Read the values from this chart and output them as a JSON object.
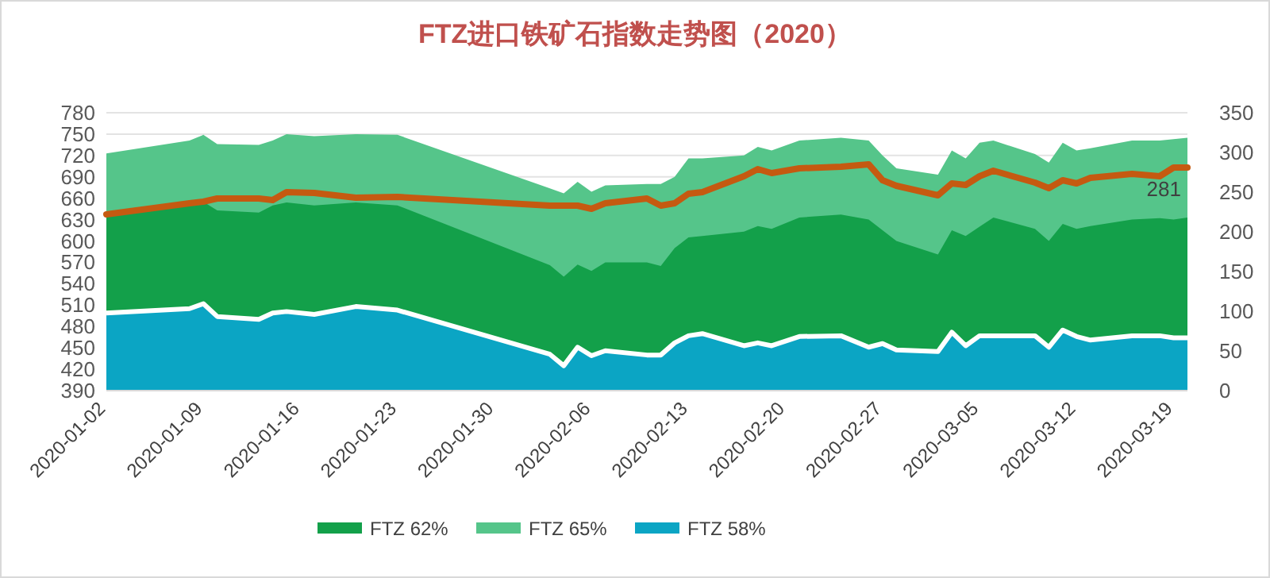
{
  "chart_data": {
    "type": "area",
    "title": "FTZ进口铁矿石指数走势图（2020）",
    "x": [
      "2020-01-02",
      "2020-01-08",
      "2020-01-09",
      "2020-01-10",
      "2020-01-13",
      "2020-01-14",
      "2020-01-15",
      "2020-01-17",
      "2020-01-20",
      "2020-01-23",
      "2020-02-03",
      "2020-02-04",
      "2020-02-05",
      "2020-02-06",
      "2020-02-07",
      "2020-02-10",
      "2020-02-11",
      "2020-02-12",
      "2020-02-13",
      "2020-02-14",
      "2020-02-17",
      "2020-02-18",
      "2020-02-19",
      "2020-02-21",
      "2020-02-24",
      "2020-02-26",
      "2020-02-27",
      "2020-02-28",
      "2020-03-02",
      "2020-03-03",
      "2020-03-04",
      "2020-03-05",
      "2020-03-06",
      "2020-03-09",
      "2020-03-10",
      "2020-03-11",
      "2020-03-12",
      "2020-03-13",
      "2020-03-16",
      "2020-03-18",
      "2020-03-19",
      "2020-03-20"
    ],
    "series": [
      {
        "name": "FTZ 62%",
        "color": "#13a04a",
        "values": [
          637,
          653,
          655,
          643,
          640,
          650,
          654,
          650,
          654,
          650,
          566,
          550,
          567,
          558,
          570,
          570,
          565,
          590,
          605,
          607,
          613,
          621,
          617,
          633,
          637,
          630,
          615,
          600,
          581,
          615,
          607,
          620,
          633,
          617,
          600,
          624,
          617,
          621,
          630,
          632,
          630,
          633
        ]
      },
      {
        "name": "FTZ 65%",
        "color": "#55c58a",
        "values": [
          723,
          741,
          749,
          736,
          735,
          741,
          750,
          747,
          750,
          749,
          674,
          667,
          683,
          669,
          678,
          680,
          680,
          690,
          716,
          716,
          720,
          732,
          727,
          741,
          745,
          741,
          720,
          702,
          693,
          727,
          716,
          738,
          741,
          722,
          710,
          738,
          727,
          730,
          741,
          741,
          743,
          745
        ]
      },
      {
        "name": "FTZ 58%",
        "color": "#0ba5c4",
        "values": [
          499,
          505,
          512,
          494,
          490,
          499,
          501,
          497,
          508,
          503,
          441,
          425,
          451,
          439,
          446,
          440,
          440,
          457,
          467,
          470,
          453,
          457,
          453,
          466,
          467,
          451,
          456,
          447,
          445,
          472,
          453,
          467,
          467,
          467,
          451,
          475,
          466,
          461,
          467,
          467,
          464,
          464
        ]
      },
      {
        "type": "line",
        "axis": "y2",
        "color": "#c55a11",
        "values": [
          222,
          236,
          238,
          242,
          242,
          240,
          250,
          249,
          243,
          244,
          233,
          233,
          233,
          229,
          236,
          242,
          233,
          236,
          248,
          250,
          270,
          279,
          274,
          280,
          282,
          285,
          265,
          258,
          246,
          261,
          259,
          270,
          277,
          262,
          255,
          265,
          261,
          268,
          273,
          270,
          281,
          281
        ],
        "value_labels": [
          null,
          null,
          null,
          null,
          null,
          null,
          null,
          null,
          null,
          null,
          null,
          null,
          null,
          null,
          null,
          null,
          null,
          null,
          null,
          null,
          null,
          null,
          null,
          null,
          null,
          null,
          null,
          null,
          null,
          null,
          null,
          null,
          null,
          null,
          null,
          null,
          null,
          null,
          null,
          null,
          null,
          "281"
        ]
      }
    ],
    "xlim": [
      "2020-01-02",
      "2020-03-20"
    ],
    "xticks": [
      "2020-01-02",
      "2020-01-09",
      "2020-01-16",
      "2020-01-23",
      "2020-01-30",
      "2020-02-06",
      "2020-02-13",
      "2020-02-20",
      "2020-02-27",
      "2020-03-05",
      "2020-03-12",
      "2020-03-19"
    ],
    "ylim": [
      390,
      780
    ],
    "yticks": [
      390,
      420,
      450,
      480,
      510,
      540,
      570,
      600,
      630,
      660,
      690,
      720,
      750,
      780
    ],
    "y2lim": [
      0,
      350
    ],
    "y2ticks": [
      0,
      50,
      100,
      150,
      200,
      250,
      300,
      350
    ],
    "grid": "y",
    "legend": "bottom"
  }
}
